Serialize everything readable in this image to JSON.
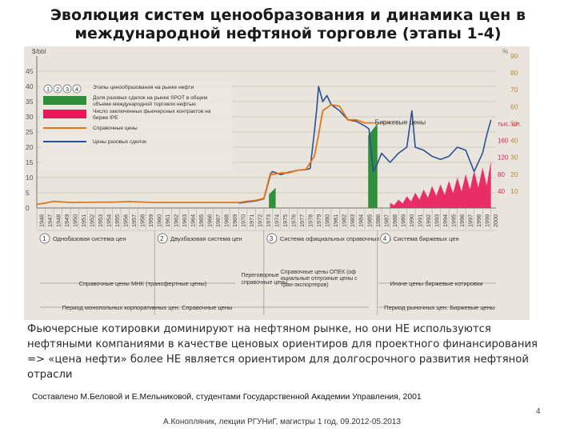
{
  "slide": {
    "title": "Эволюция систем ценообразования и динамика цен в международной нефтяной торговле (этапы 1-4)",
    "body_text": "Фьючерсные котировки доминируют на нефтяном рынке, но они НЕ используются нефтяными компаниями в качестве ценовых ориентиров для проектного финансирования => «цена нефти» более НЕ является ориентиром для долгосрочного развития нефтяной отрасли",
    "credit": "Составлено М.Беловой и Е.Мельниковой, студентами Государственной Академии Управления, 2001",
    "page_number": "4",
    "footer": "А.Конопляник, лекции РГУНиГ, магистры 1 год, 09.2012-05.2013"
  },
  "chart_data": {
    "type": "line",
    "y_left_unit": "$/bbl",
    "y_right_unit": "%",
    "ylim_left": [
      0,
      50
    ],
    "ylim_right": [
      0,
      90
    ],
    "yticks_left": [
      0,
      5,
      10,
      15,
      20,
      25,
      30,
      35,
      40,
      45
    ],
    "yticks_right": [
      10,
      20,
      30,
      40,
      50,
      60,
      70,
      80,
      90
    ],
    "right_tick_labels": [
      {
        "y": 50,
        "label": "тыс. шт."
      },
      {
        "y": 40,
        "label": "160"
      },
      {
        "y": 30,
        "label": "120"
      },
      {
        "y": 20,
        "label": "80"
      },
      {
        "y": 10,
        "label": "40"
      }
    ],
    "x_years": [
      "1946",
      "1947",
      "1948",
      "1949",
      "1950",
      "1951",
      "1952",
      "1953",
      "1954",
      "1955",
      "1956",
      "1957",
      "1958",
      "1959",
      "1960",
      "1961",
      "1962",
      "1963",
      "1964",
      "1965",
      "1966",
      "1967",
      "1968",
      "1969",
      "1970",
      "1971",
      "1972",
      "1973",
      "1974",
      "1975",
      "1976",
      "1977",
      "1978",
      "1979",
      "1980",
      "1981",
      "1982",
      "1983",
      "1984",
      "1985",
      "1986",
      "1987",
      "1988",
      "1989",
      "1990",
      "1991",
      "1992",
      "1993",
      "1994",
      "1995",
      "1996",
      "1997",
      "1998",
      "1999",
      "2000"
    ],
    "legend": [
      {
        "key": "stages",
        "label": "Этапы ценообразования на рынке нефти",
        "stage_labels": [
          "1",
          "2",
          "3",
          "4"
        ]
      },
      {
        "key": "spot_share",
        "label": "Доля разовых сделок на рынке SPOT в общем объеме международной торговли нефтью",
        "color": "#2f8f3a"
      },
      {
        "key": "futures",
        "label": "Число заключенных фьючерсных контрактов на бирже IPE",
        "color": "#e8185a"
      },
      {
        "key": "reference",
        "label": "Справочные цены",
        "color": "#e0761c"
      },
      {
        "key": "spot",
        "label": "Цены разовых сделок",
        "color": "#2c4f96"
      }
    ],
    "annotations": [
      "Биржевые цены"
    ],
    "series": [
      {
        "name": "Справочные цены",
        "x": [
          1946,
          1947,
          1948,
          1949,
          1950,
          1953,
          1955,
          1957,
          1959,
          1960,
          1961,
          1962,
          1963,
          1964,
          1965,
          1966,
          1967,
          1968,
          1969,
          1970,
          1971,
          1972,
          1973,
          1973.8,
          1974,
          1975,
          1976,
          1977,
          1978,
          1979,
          1979.5,
          1980,
          1981,
          1982,
          1983,
          1984,
          1985,
          1986,
          1987,
          1988
        ],
        "y": [
          1.2,
          1.6,
          2.2,
          2.0,
          1.8,
          1.9,
          1.9,
          2.1,
          1.9,
          1.8,
          1.8,
          1.8,
          1.8,
          1.8,
          1.8,
          1.8,
          1.8,
          1.8,
          1.8,
          1.8,
          2.2,
          2.5,
          3.2,
          11.6,
          11.0,
          11.5,
          11.6,
          12.4,
          12.7,
          17.0,
          24.0,
          32.0,
          34.0,
          33.5,
          29.0,
          29.0,
          28.0,
          28.0,
          28.0,
          28.0
        ]
      },
      {
        "name": "Цены разовых сделок",
        "x": [
          1970,
          1971,
          1972,
          1973,
          1973.8,
          1974,
          1975,
          1976,
          1977,
          1978,
          1978.5,
          1979,
          1979.3,
          1979.5,
          1979.8,
          1980,
          1980.5,
          1981,
          1982,
          1983,
          1984,
          1985,
          1985.5,
          1986,
          1986.4,
          1987,
          1988,
          1989,
          1990,
          1990.6,
          1991,
          1992,
          1993,
          1994,
          1995,
          1996,
          1997,
          1998,
          1999,
          1999.5,
          2000
        ],
        "y": [
          1.6,
          2.0,
          2.3,
          3.0,
          11.0,
          12.0,
          11.0,
          11.8,
          12.4,
          12.6,
          13.0,
          25.0,
          33.0,
          40.0,
          37.0,
          35.0,
          37.0,
          34.0,
          32.0,
          29.0,
          28.5,
          27.0,
          26.0,
          12.0,
          14.0,
          18.0,
          15.0,
          18.0,
          20.0,
          32.0,
          20.0,
          19.0,
          17.0,
          16.0,
          17.0,
          20.0,
          19.0,
          12.0,
          18.0,
          24.0,
          29.0
        ]
      },
      {
        "name": "Доля разовых сделок на рынке SPOT",
        "x": [
          1973.6,
          1974.4,
          1985.4,
          1986.5
        ],
        "y_right": [
          8,
          12,
          43,
          50
        ]
      },
      {
        "name": "Число фьючерсных контрактов IPE",
        "x": [
          1988,
          1989,
          1990,
          1991,
          1992,
          1993,
          1994,
          1995,
          1996,
          1997,
          1998,
          1999,
          2000
        ],
        "y_right": [
          3,
          5,
          7,
          9,
          11,
          13,
          14,
          16,
          18,
          20,
          22,
          24,
          28
        ]
      }
    ],
    "stage_axis": {
      "stages": [
        {
          "num": "1",
          "label": "Однобазовая система цен"
        },
        {
          "num": "2",
          "label": "Двухбазовая система цен"
        },
        {
          "num": "3",
          "label": "Система официальных справочных цен"
        },
        {
          "num": "4",
          "label": "Система биржевых цен"
        }
      ],
      "price_bands": [
        "Справочные цены МНК (трансфертные цены)",
        "Переговорные справочные цены",
        "Справочные цены ОПЕК (официальные отпускные цены стран-экспортеров)",
        "Иначе цены биржевые котировки"
      ],
      "periods": [
        "Период монопольных корпоративных цен. Справочные цены",
        "Период рыночных цен. Биржевые цены"
      ]
    },
    "grid": true
  }
}
